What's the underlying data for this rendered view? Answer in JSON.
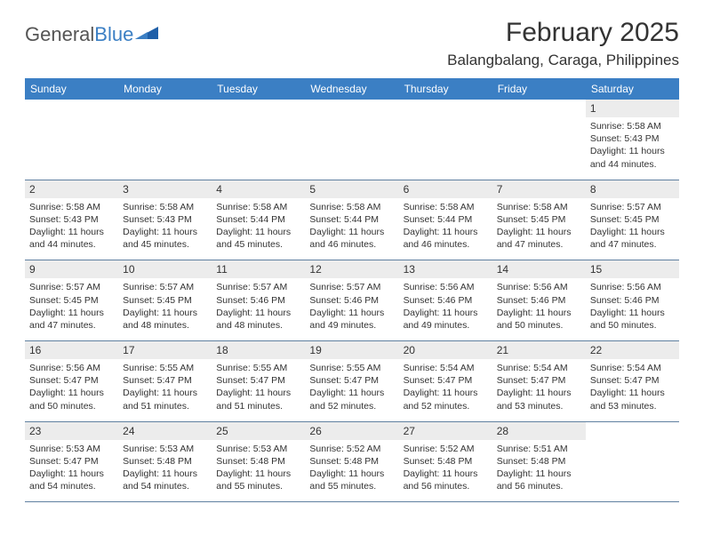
{
  "logo": {
    "text1": "General",
    "text2": "Blue"
  },
  "title": "February 2025",
  "location": "Balangbalang, Caraga, Philippines",
  "colors": {
    "header_bg": "#3b7fc4",
    "header_text": "#ffffff",
    "daynum_bg": "#ececec",
    "text": "#333333",
    "logo_gray": "#555555",
    "logo_blue": "#3b7fc4",
    "row_border": "#6080a0"
  },
  "day_headers": [
    "Sunday",
    "Monday",
    "Tuesday",
    "Wednesday",
    "Thursday",
    "Friday",
    "Saturday"
  ],
  "weeks": [
    [
      {
        "day": "",
        "sunrise": "",
        "sunset": "",
        "daylight": ""
      },
      {
        "day": "",
        "sunrise": "",
        "sunset": "",
        "daylight": ""
      },
      {
        "day": "",
        "sunrise": "",
        "sunset": "",
        "daylight": ""
      },
      {
        "day": "",
        "sunrise": "",
        "sunset": "",
        "daylight": ""
      },
      {
        "day": "",
        "sunrise": "",
        "sunset": "",
        "daylight": ""
      },
      {
        "day": "",
        "sunrise": "",
        "sunset": "",
        "daylight": ""
      },
      {
        "day": "1",
        "sunrise": "Sunrise: 5:58 AM",
        "sunset": "Sunset: 5:43 PM",
        "daylight": "Daylight: 11 hours and 44 minutes."
      }
    ],
    [
      {
        "day": "2",
        "sunrise": "Sunrise: 5:58 AM",
        "sunset": "Sunset: 5:43 PM",
        "daylight": "Daylight: 11 hours and 44 minutes."
      },
      {
        "day": "3",
        "sunrise": "Sunrise: 5:58 AM",
        "sunset": "Sunset: 5:43 PM",
        "daylight": "Daylight: 11 hours and 45 minutes."
      },
      {
        "day": "4",
        "sunrise": "Sunrise: 5:58 AM",
        "sunset": "Sunset: 5:44 PM",
        "daylight": "Daylight: 11 hours and 45 minutes."
      },
      {
        "day": "5",
        "sunrise": "Sunrise: 5:58 AM",
        "sunset": "Sunset: 5:44 PM",
        "daylight": "Daylight: 11 hours and 46 minutes."
      },
      {
        "day": "6",
        "sunrise": "Sunrise: 5:58 AM",
        "sunset": "Sunset: 5:44 PM",
        "daylight": "Daylight: 11 hours and 46 minutes."
      },
      {
        "day": "7",
        "sunrise": "Sunrise: 5:58 AM",
        "sunset": "Sunset: 5:45 PM",
        "daylight": "Daylight: 11 hours and 47 minutes."
      },
      {
        "day": "8",
        "sunrise": "Sunrise: 5:57 AM",
        "sunset": "Sunset: 5:45 PM",
        "daylight": "Daylight: 11 hours and 47 minutes."
      }
    ],
    [
      {
        "day": "9",
        "sunrise": "Sunrise: 5:57 AM",
        "sunset": "Sunset: 5:45 PM",
        "daylight": "Daylight: 11 hours and 47 minutes."
      },
      {
        "day": "10",
        "sunrise": "Sunrise: 5:57 AM",
        "sunset": "Sunset: 5:45 PM",
        "daylight": "Daylight: 11 hours and 48 minutes."
      },
      {
        "day": "11",
        "sunrise": "Sunrise: 5:57 AM",
        "sunset": "Sunset: 5:46 PM",
        "daylight": "Daylight: 11 hours and 48 minutes."
      },
      {
        "day": "12",
        "sunrise": "Sunrise: 5:57 AM",
        "sunset": "Sunset: 5:46 PM",
        "daylight": "Daylight: 11 hours and 49 minutes."
      },
      {
        "day": "13",
        "sunrise": "Sunrise: 5:56 AM",
        "sunset": "Sunset: 5:46 PM",
        "daylight": "Daylight: 11 hours and 49 minutes."
      },
      {
        "day": "14",
        "sunrise": "Sunrise: 5:56 AM",
        "sunset": "Sunset: 5:46 PM",
        "daylight": "Daylight: 11 hours and 50 minutes."
      },
      {
        "day": "15",
        "sunrise": "Sunrise: 5:56 AM",
        "sunset": "Sunset: 5:46 PM",
        "daylight": "Daylight: 11 hours and 50 minutes."
      }
    ],
    [
      {
        "day": "16",
        "sunrise": "Sunrise: 5:56 AM",
        "sunset": "Sunset: 5:47 PM",
        "daylight": "Daylight: 11 hours and 50 minutes."
      },
      {
        "day": "17",
        "sunrise": "Sunrise: 5:55 AM",
        "sunset": "Sunset: 5:47 PM",
        "daylight": "Daylight: 11 hours and 51 minutes."
      },
      {
        "day": "18",
        "sunrise": "Sunrise: 5:55 AM",
        "sunset": "Sunset: 5:47 PM",
        "daylight": "Daylight: 11 hours and 51 minutes."
      },
      {
        "day": "19",
        "sunrise": "Sunrise: 5:55 AM",
        "sunset": "Sunset: 5:47 PM",
        "daylight": "Daylight: 11 hours and 52 minutes."
      },
      {
        "day": "20",
        "sunrise": "Sunrise: 5:54 AM",
        "sunset": "Sunset: 5:47 PM",
        "daylight": "Daylight: 11 hours and 52 minutes."
      },
      {
        "day": "21",
        "sunrise": "Sunrise: 5:54 AM",
        "sunset": "Sunset: 5:47 PM",
        "daylight": "Daylight: 11 hours and 53 minutes."
      },
      {
        "day": "22",
        "sunrise": "Sunrise: 5:54 AM",
        "sunset": "Sunset: 5:47 PM",
        "daylight": "Daylight: 11 hours and 53 minutes."
      }
    ],
    [
      {
        "day": "23",
        "sunrise": "Sunrise: 5:53 AM",
        "sunset": "Sunset: 5:47 PM",
        "daylight": "Daylight: 11 hours and 54 minutes."
      },
      {
        "day": "24",
        "sunrise": "Sunrise: 5:53 AM",
        "sunset": "Sunset: 5:48 PM",
        "daylight": "Daylight: 11 hours and 54 minutes."
      },
      {
        "day": "25",
        "sunrise": "Sunrise: 5:53 AM",
        "sunset": "Sunset: 5:48 PM",
        "daylight": "Daylight: 11 hours and 55 minutes."
      },
      {
        "day": "26",
        "sunrise": "Sunrise: 5:52 AM",
        "sunset": "Sunset: 5:48 PM",
        "daylight": "Daylight: 11 hours and 55 minutes."
      },
      {
        "day": "27",
        "sunrise": "Sunrise: 5:52 AM",
        "sunset": "Sunset: 5:48 PM",
        "daylight": "Daylight: 11 hours and 56 minutes."
      },
      {
        "day": "28",
        "sunrise": "Sunrise: 5:51 AM",
        "sunset": "Sunset: 5:48 PM",
        "daylight": "Daylight: 11 hours and 56 minutes."
      },
      {
        "day": "",
        "sunrise": "",
        "sunset": "",
        "daylight": ""
      }
    ]
  ]
}
